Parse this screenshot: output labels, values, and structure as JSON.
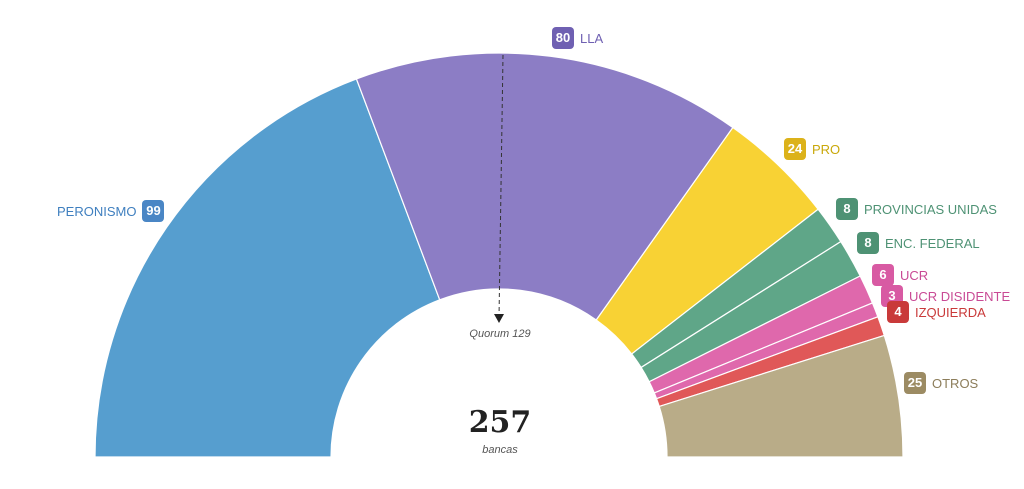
{
  "chart_data": {
    "type": "pie",
    "subtype": "half-donut parliament",
    "total": 257,
    "total_label": "bancas",
    "quorum_label": "Quorum 129",
    "quorum": 129,
    "slices": [
      {
        "name": "PERONISMO",
        "value": 99,
        "color": "#569ecf",
        "badge": "#4a86c5",
        "text": "#3f7fbf"
      },
      {
        "name": "LLA",
        "value": 80,
        "color": "#8c7dc5",
        "badge": "#6f60b2",
        "text": "#6f60b2"
      },
      {
        "name": "PRO",
        "value": 24,
        "color": "#f8d234",
        "badge": "#dcb21a",
        "text": "#c9a80a"
      },
      {
        "name": "PROVINCIAS UNIDAS",
        "value": 8,
        "color": "#5fa688",
        "badge": "#4e9274",
        "text": "#4e9274"
      },
      {
        "name": "ENC. FEDERAL",
        "value": 8,
        "color": "#5fa688",
        "badge": "#4e9274",
        "text": "#4e9274"
      },
      {
        "name": "UCR",
        "value": 6,
        "color": "#df68ac",
        "badge": "#d85aa3",
        "text": "#c94a95"
      },
      {
        "name": "UCR DISIDENTE",
        "value": 3,
        "color": "#df68ac",
        "badge": "#d85aa3",
        "text": "#c94a95"
      },
      {
        "name": "IZQUIERDA",
        "value": 4,
        "color": "#e05858",
        "badge": "#c93a3a",
        "text": "#c93a3a"
      },
      {
        "name": "OTROS",
        "value": 25,
        "color": "#b9ac88",
        "badge": "#9c8b63",
        "text": "#8c7d5a"
      }
    ]
  }
}
